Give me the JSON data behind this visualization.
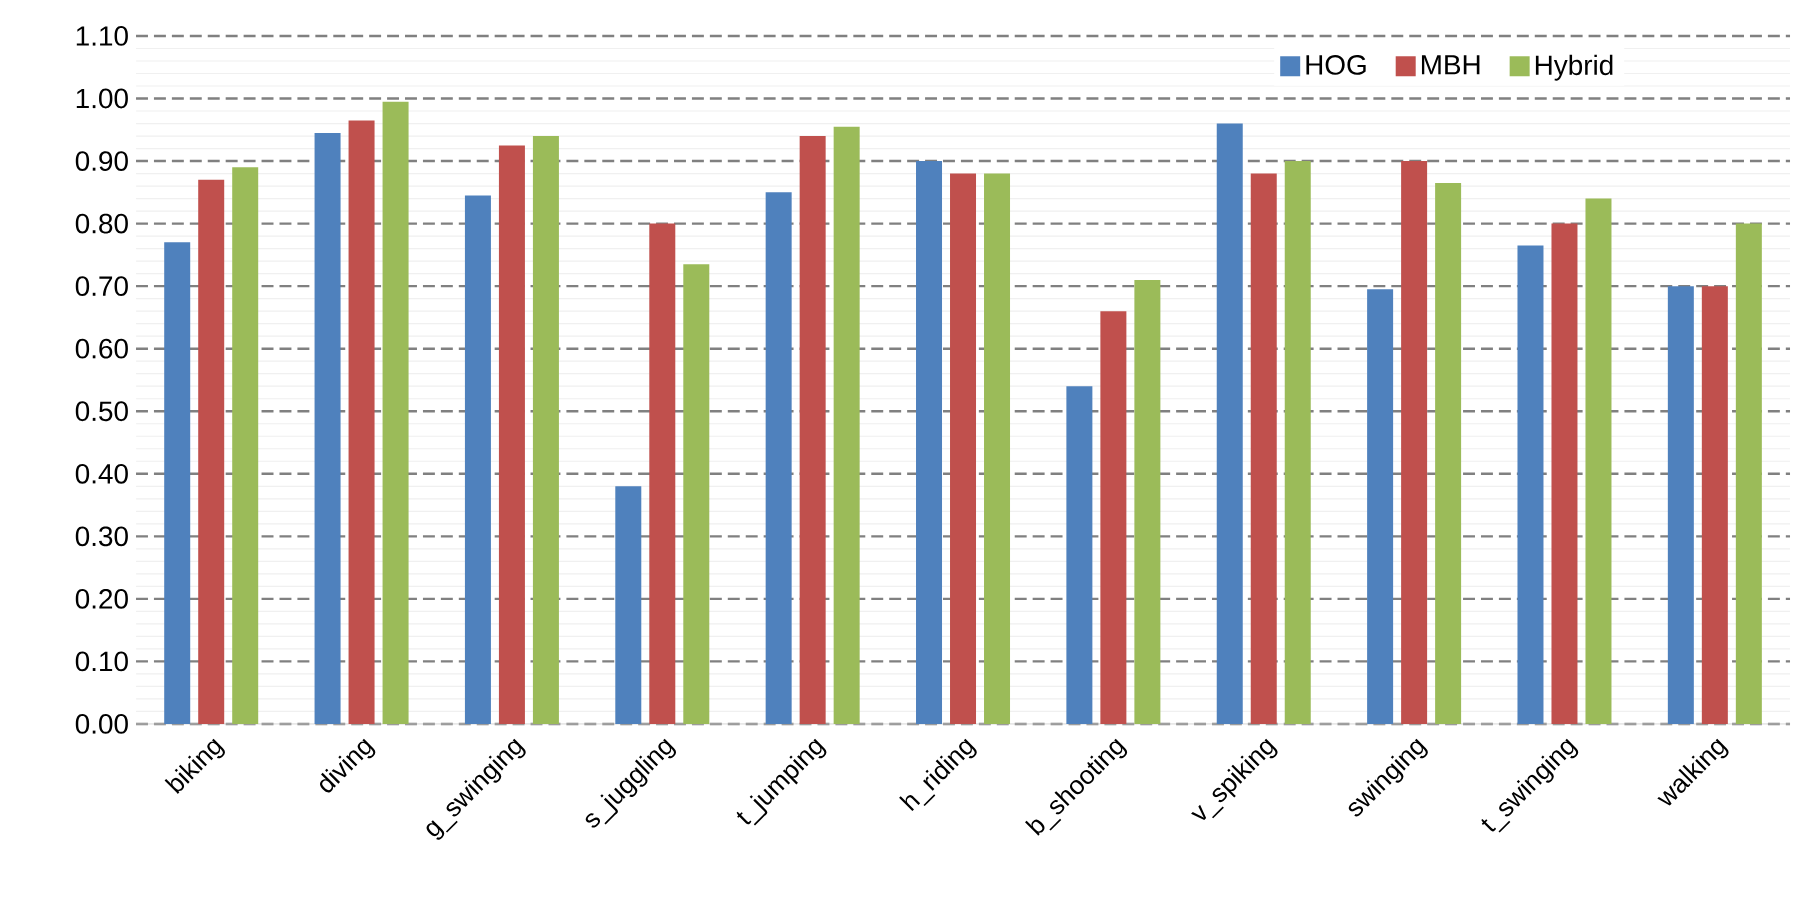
{
  "chart_data": {
    "type": "bar",
    "categories": [
      "biking",
      "diving",
      "g_swinging",
      "s_juggling",
      "t_jumping",
      "h_riding",
      "b_shooting",
      "v_spiking",
      "swinging",
      "t_swinging",
      "walking"
    ],
    "series": [
      {
        "name": "HOG",
        "color": "#4f81bd",
        "values": [
          0.77,
          0.945,
          0.845,
          0.38,
          0.85,
          0.9,
          0.54,
          0.96,
          0.695,
          0.765,
          0.7
        ]
      },
      {
        "name": "MBH",
        "color": "#c0504d",
        "values": [
          0.87,
          0.965,
          0.925,
          0.8,
          0.94,
          0.88,
          0.66,
          0.88,
          0.9,
          0.8,
          0.7
        ]
      },
      {
        "name": "Hybrid",
        "color": "#9bbb59",
        "values": [
          0.89,
          0.995,
          0.94,
          0.735,
          0.955,
          0.88,
          0.71,
          0.9,
          0.865,
          0.84,
          0.8
        ]
      }
    ],
    "ylim": [
      0,
      1.1
    ],
    "yticks": [
      {
        "value": 0,
        "label": "0.00"
      },
      {
        "value": 0.1,
        "label": "0.10"
      },
      {
        "value": 0.2,
        "label": "0.20"
      },
      {
        "value": 0.3,
        "label": "0.30"
      },
      {
        "value": 0.4,
        "label": "0.40"
      },
      {
        "value": 0.5,
        "label": "0.50"
      },
      {
        "value": 0.6,
        "label": "0.60"
      },
      {
        "value": 0.7,
        "label": "0.70"
      },
      {
        "value": 0.8,
        "label": "0.80"
      },
      {
        "value": 0.9,
        "label": "0.90"
      },
      {
        "value": 1.0,
        "label": "1.00"
      },
      {
        "value": 1.1,
        "label": "1.10"
      }
    ],
    "grid": "y",
    "legend": "top right"
  }
}
